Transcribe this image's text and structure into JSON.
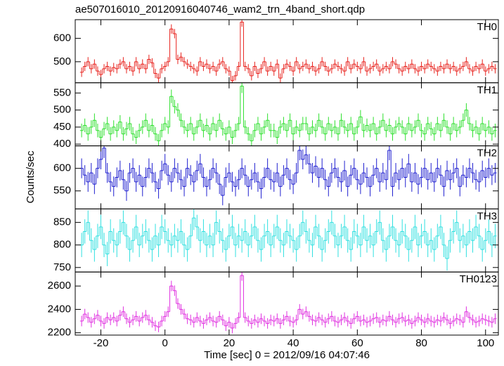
{
  "chart_data": {
    "type": "line",
    "title": "ae507016010_20120916040746_wam2_trn_4band_short.qdp",
    "xlabel": "Time [sec] 0 = 2012/09/16 04:07:46",
    "ylabel": "Counts/sec",
    "xlim": [
      -28,
      104
    ],
    "xticks": [
      -20,
      0,
      20,
      40,
      60,
      80,
      100
    ],
    "x": [
      -26,
      -25,
      -24,
      -23,
      -22,
      -21,
      -20,
      -19,
      -18,
      -17,
      -16,
      -15,
      -14,
      -13,
      -12,
      -11,
      -10,
      -9,
      -8,
      -7,
      -6,
      -5,
      -4,
      -3,
      -2,
      -1,
      0,
      1,
      2,
      3,
      4,
      5,
      6,
      7,
      8,
      9,
      10,
      11,
      12,
      13,
      14,
      15,
      16,
      17,
      18,
      19,
      20,
      21,
      22,
      23,
      24,
      25,
      26,
      27,
      28,
      29,
      30,
      31,
      32,
      33,
      34,
      35,
      36,
      37,
      38,
      39,
      40,
      41,
      42,
      43,
      44,
      45,
      46,
      47,
      48,
      49,
      50,
      51,
      52,
      53,
      54,
      55,
      56,
      57,
      58,
      59,
      60,
      61,
      62,
      63,
      64,
      65,
      66,
      67,
      68,
      69,
      70,
      71,
      72,
      73,
      74,
      75,
      76,
      77,
      78,
      79,
      80,
      81,
      82,
      83,
      84,
      85,
      86,
      87,
      88,
      89,
      90,
      91,
      92,
      93,
      94,
      95,
      96,
      97,
      98,
      99,
      100,
      101,
      102,
      103
    ],
    "series": [
      {
        "name": "TH0",
        "color": "#e8231e",
        "ylim": [
          410,
          680
        ],
        "yticks": [
          500,
          600
        ],
        "error": 20,
        "values": [
          455,
          480,
          500,
          470,
          490,
          460,
          445,
          470,
          480,
          460,
          475,
          470,
          490,
          500,
          470,
          480,
          460,
          500,
          470,
          490,
          470,
          510,
          495,
          450,
          430,
          470,
          480,
          500,
          640,
          620,
          510,
          520,
          500,
          490,
          480,
          470,
          460,
          500,
          480,
          490,
          470,
          480,
          460,
          490,
          500,
          470,
          460,
          420,
          440,
          480,
          670,
          480,
          470,
          440,
          480,
          450,
          470,
          500,
          460,
          480,
          460,
          490,
          430,
          470,
          490,
          480,
          460,
          500,
          470,
          480,
          490,
          470,
          480,
          460,
          470,
          500,
          480,
          460,
          470,
          490,
          480,
          470,
          460,
          500,
          470,
          490,
          480,
          470,
          500,
          460,
          470,
          480,
          490,
          460,
          470,
          480,
          470,
          500,
          490,
          470,
          460,
          480,
          470,
          490,
          470,
          460,
          480,
          470,
          490,
          480,
          470,
          460,
          480,
          470,
          490,
          470,
          480,
          460,
          470,
          480,
          500,
          470,
          460,
          480,
          470,
          490,
          460,
          470,
          480,
          470
        ]
      },
      {
        "name": "TH1",
        "color": "#2ee02e",
        "ylim": [
          395,
          580
        ],
        "yticks": [
          400,
          450,
          500,
          550
        ],
        "error": 20,
        "values": [
          440,
          455,
          430,
          450,
          470,
          440,
          420,
          445,
          460,
          430,
          450,
          440,
          465,
          430,
          445,
          460,
          430,
          420,
          440,
          450,
          470,
          440,
          455,
          430,
          410,
          440,
          460,
          450,
          540,
          510,
          500,
          470,
          450,
          440,
          460,
          430,
          450,
          470,
          440,
          455,
          430,
          460,
          440,
          470,
          445,
          430,
          450,
          420,
          440,
          460,
          570,
          450,
          430,
          410,
          440,
          460,
          430,
          450,
          470,
          440,
          440,
          420,
          450,
          460,
          440,
          470,
          430,
          450,
          440,
          460,
          460,
          430,
          450,
          440,
          470,
          450,
          430,
          460,
          440,
          450,
          430,
          470,
          450,
          440,
          460,
          430,
          450,
          480,
          440,
          455,
          440,
          460,
          430,
          450,
          470,
          440,
          455,
          430,
          450,
          460,
          450,
          430,
          460,
          440,
          450,
          470,
          440,
          430,
          460,
          445,
          430,
          460,
          440,
          470,
          450,
          430,
          460,
          440,
          450,
          470,
          500,
          460,
          440,
          450,
          430,
          460,
          440,
          450,
          430,
          440
        ]
      },
      {
        "name": "TH2",
        "color": "#2020d0",
        "ylim": [
          510,
          650
        ],
        "yticks": [
          550,
          600
        ],
        "error": 22,
        "values": [
          600,
          585,
          570,
          590,
          565,
          600,
          620,
          645,
          590,
          570,
          560,
          580,
          595,
          575,
          550,
          590,
          600,
          570,
          585,
          560,
          580,
          600,
          590,
          570,
          555,
          595,
          610,
          585,
          570,
          600,
          590,
          575,
          560,
          600,
          585,
          570,
          595,
          610,
          580,
          560,
          575,
          600,
          590,
          565,
          540,
          580,
          590,
          570,
          560,
          575,
          600,
          585,
          560,
          575,
          590,
          570,
          555,
          580,
          600,
          575,
          570,
          590,
          560,
          585,
          600,
          575,
          565,
          590,
          640,
          620,
          630,
          610,
          590,
          605,
          580,
          600,
          575,
          560,
          590,
          600,
          580,
          570,
          595,
          560,
          585,
          600,
          575,
          565,
          590,
          580,
          560,
          585,
          600,
          570,
          590,
          575,
          640,
          560,
          590,
          575,
          600,
          580,
          610,
          570,
          590,
          565,
          580,
          600,
          575,
          590,
          570,
          600,
          585,
          560,
          595,
          575,
          590,
          600,
          560,
          585,
          580,
          600,
          590,
          575,
          570,
          595,
          580,
          600,
          585,
          590
        ]
      },
      {
        "name": "TH3",
        "color": "#30e0e0",
        "ylim": [
          740,
          880
        ],
        "yticks": [
          750,
          800,
          850
        ],
        "error": 27,
        "values": [
          800,
          830,
          850,
          810,
          790,
          820,
          840,
          800,
          780,
          830,
          810,
          800,
          830,
          850,
          820,
          790,
          810,
          840,
          800,
          820,
          830,
          810,
          790,
          820,
          800,
          840,
          830,
          810,
          800,
          820,
          810,
          830,
          800,
          790,
          820,
          860,
          840,
          810,
          830,
          800,
          820,
          800,
          850,
          830,
          810,
          790,
          820,
          840,
          800,
          820,
          810,
          830,
          800,
          820,
          840,
          810,
          790,
          820,
          830,
          800,
          820,
          840,
          810,
          800,
          830,
          820,
          810,
          790,
          820,
          850,
          830,
          810,
          800,
          840,
          820,
          790,
          810,
          830,
          850,
          820,
          800,
          820,
          840,
          810,
          790,
          830,
          820,
          800,
          840,
          810,
          820,
          800,
          830,
          850,
          810,
          790,
          820,
          840,
          810,
          800,
          830,
          820,
          790,
          810,
          840,
          800,
          820,
          830,
          800,
          810,
          790,
          820,
          840,
          800,
          770,
          810,
          830,
          850,
          810,
          820,
          800,
          830,
          810,
          840,
          820,
          790,
          810,
          830,
          800,
          820
        ]
      },
      {
        "name": "TH0123",
        "color": "#e030e0",
        "ylim": [
          2180,
          2720
        ],
        "yticks": [
          2200,
          2400,
          2600
        ],
        "error": 45,
        "values": [
          2300,
          2360,
          2330,
          2290,
          2320,
          2350,
          2300,
          2280,
          2330,
          2310,
          2330,
          2300,
          2350,
          2380,
          2320,
          2290,
          2310,
          2340,
          2300,
          2330,
          2350,
          2310,
          2290,
          2260,
          2250,
          2300,
          2340,
          2380,
          2600,
          2560,
          2450,
          2400,
          2360,
          2320,
          2310,
          2290,
          2330,
          2300,
          2280,
          2310,
          2330,
          2300,
          2290,
          2340,
          2310,
          2260,
          2290,
          2240,
          2280,
          2330,
          2690,
          2330,
          2300,
          2280,
          2310,
          2290,
          2320,
          2300,
          2280,
          2310,
          2300,
          2320,
          2280,
          2310,
          2340,
          2300,
          2290,
          2310,
          2400,
          2360,
          2380,
          2340,
          2310,
          2300,
          2330,
          2310,
          2290,
          2320,
          2340,
          2300,
          2290,
          2310,
          2330,
          2300,
          2280,
          2320,
          2340,
          2300,
          2310,
          2290,
          2300,
          2320,
          2330,
          2290,
          2310,
          2300,
          2340,
          2310,
          2290,
          2320,
          2330,
          2300,
          2310,
          2280,
          2300,
          2330,
          2310,
          2290,
          2320,
          2300,
          2290,
          2310,
          2300,
          2330,
          2310,
          2280,
          2300,
          2320,
          2310,
          2290,
          2380,
          2330,
          2310,
          2290,
          2300,
          2320,
          2310,
          2300,
          2290,
          2320
        ]
      }
    ]
  }
}
